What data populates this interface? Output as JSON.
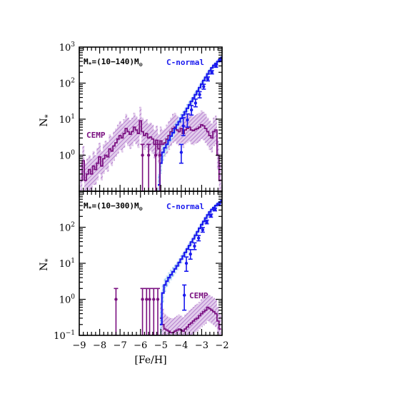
{
  "colors": {
    "c_normal": "#1a1aee",
    "c_normal_band": "#9ec8ee",
    "cemp": "#7a1080",
    "cemp_band": "#c8a0dc",
    "axes": "#000000"
  },
  "x_axis": {
    "label": "[Fe/H]",
    "xlim": [
      -9,
      -2
    ],
    "ticks": [
      "−9",
      "−8",
      "−7",
      "−6",
      "−5",
      "−4",
      "−3",
      "−2"
    ],
    "tick_values": [
      -9,
      -8,
      -7,
      -6,
      -5,
      -4,
      -3,
      -2
    ]
  },
  "chart_data": [
    {
      "type": "line",
      "panel": "top",
      "mass_label": {
        "prefix": "M",
        "sub": "*",
        "mid": "=(10−140)M",
        "sun": "⊙"
      },
      "ylabel": {
        "main": "N",
        "sub": "*"
      },
      "ylim": [
        0.1,
        1000
      ],
      "yscale": "log",
      "y_ticks": [
        {
          "value": 1,
          "base": "10",
          "exp": "0"
        },
        {
          "value": 10,
          "base": "10",
          "exp": "1"
        },
        {
          "value": 100,
          "base": "10",
          "exp": "2"
        },
        {
          "value": 1000,
          "base": "10",
          "exp": "3"
        }
      ],
      "series": [
        {
          "name": "C-normal",
          "label_position": "top-right",
          "x": [
            -5.1,
            -5.0,
            -4.9,
            -4.8,
            -4.7,
            -4.6,
            -4.5,
            -4.4,
            -4.3,
            -4.2,
            -4.1,
            -4.0,
            -3.9,
            -3.8,
            -3.7,
            -3.6,
            -3.5,
            -3.4,
            -3.3,
            -3.2,
            -3.1,
            -3.0,
            -2.9,
            -2.8,
            -2.7,
            -2.6,
            -2.5,
            -2.4,
            -2.3,
            -2.2,
            -2.1,
            -2.0
          ],
          "y": [
            0.15,
            0.6,
            1.2,
            1.6,
            2.0,
            2.6,
            3.4,
            4.2,
            5.5,
            7.0,
            8.5,
            10.5,
            13,
            16,
            20,
            25,
            31,
            39,
            48,
            60,
            75,
            94,
            118,
            145,
            180,
            220,
            265,
            310,
            350,
            400,
            460,
            520
          ],
          "band_low": [
            0.1,
            0.3,
            0.7,
            1.0,
            1.3,
            1.8,
            2.4,
            3.0,
            4.0,
            5.2,
            6.5,
            8.0,
            10,
            12.5,
            16,
            20,
            25,
            32,
            40,
            50,
            63,
            80,
            100,
            125,
            155,
            190,
            230,
            270,
            305,
            350,
            400,
            450
          ],
          "band_high": [
            0.3,
            1.0,
            2.0,
            2.6,
            3.2,
            4.0,
            5.0,
            6.0,
            7.5,
            9.5,
            11.5,
            14,
            17,
            21,
            26,
            32,
            39,
            48,
            58,
            72,
            90,
            112,
            140,
            170,
            210,
            255,
            305,
            355,
            400,
            455,
            520,
            590
          ],
          "error_points": [
            {
              "x": -3.9,
              "y": 6.5,
              "low": 3.5,
              "high": 11
            },
            {
              "x": -3.7,
              "y": 9.5,
              "low": 6,
              "high": 14
            },
            {
              "x": -4.0,
              "y": 1.2,
              "low": 0.6,
              "high": 2.0
            },
            {
              "x": -3.5,
              "y": 18,
              "low": 13,
              "high": 24
            },
            {
              "x": -3.3,
              "y": 28,
              "low": 22,
              "high": 36
            },
            {
              "x": -3.1,
              "y": 48,
              "low": 39,
              "high": 58
            },
            {
              "x": -2.9,
              "y": 80,
              "low": 68,
              "high": 93
            },
            {
              "x": -2.7,
              "y": 130,
              "low": 115,
              "high": 148
            },
            {
              "x": -2.5,
              "y": 200,
              "low": 180,
              "high": 222
            },
            {
              "x": -2.3,
              "y": 300,
              "low": 275,
              "high": 325
            },
            {
              "x": -2.1,
              "y": 420,
              "low": 395,
              "high": 445
            }
          ]
        },
        {
          "name": "CEMP",
          "label_position": "left",
          "x": [
            -8.9,
            -8.8,
            -8.7,
            -8.6,
            -8.5,
            -8.4,
            -8.3,
            -8.2,
            -8.1,
            -8.0,
            -7.9,
            -7.8,
            -7.7,
            -7.6,
            -7.5,
            -7.4,
            -7.3,
            -7.2,
            -7.1,
            -7.0,
            -6.9,
            -6.8,
            -6.7,
            -6.6,
            -6.5,
            -6.4,
            -6.3,
            -6.2,
            -6.1,
            -6.0,
            -5.9,
            -5.8,
            -5.7,
            -5.6,
            -5.5,
            -5.4,
            -5.3,
            -5.2,
            -5.1,
            -5.0,
            -4.9,
            -4.8,
            -4.7,
            -4.6,
            -4.5,
            -4.4,
            -4.3,
            -4.2,
            -4.1,
            -4.0,
            -3.9,
            -3.8,
            -3.7,
            -3.6,
            -3.5,
            -3.4,
            -3.3,
            -3.2,
            -3.1,
            -3.0,
            -2.9,
            -2.8,
            -2.7,
            -2.6,
            -2.5,
            -2.4,
            -2.3,
            -2.2,
            -2.1
          ],
          "y": [
            0.2,
            0.7,
            0.2,
            0.3,
            0.4,
            0.3,
            0.5,
            0.4,
            0.6,
            0.9,
            0.5,
            0.8,
            1.0,
            0.9,
            1.5,
            1.3,
            1.8,
            2.2,
            2.8,
            3.5,
            3.0,
            4.0,
            5.5,
            4.5,
            3.8,
            4.5,
            6.0,
            5.0,
            4.0,
            9.0,
            4.5,
            3.5,
            4.0,
            3.0,
            3.2,
            2.8,
            2.0,
            2.6,
            1.5,
            2.5,
            2.0,
            2.2,
            2.8,
            3.5,
            4.5,
            5.5,
            6.0,
            5.0,
            4.5,
            5.5,
            4.0,
            5.0,
            5.5,
            6.0,
            5.0,
            4.8,
            5.2,
            5.5,
            6.0,
            7.0,
            6.5,
            5.5,
            4.5,
            3.5,
            3.0,
            4.5,
            5.0,
            1.0,
            0.2
          ],
          "band_low": [
            0.1,
            0.2,
            0.1,
            0.1,
            0.1,
            0.1,
            0.15,
            0.15,
            0.2,
            0.3,
            0.2,
            0.3,
            0.4,
            0.35,
            0.6,
            0.5,
            0.7,
            0.9,
            1.1,
            1.4,
            1.2,
            1.6,
            2.2,
            1.8,
            1.5,
            1.8,
            2.4,
            2.0,
            1.6,
            3.6,
            1.8,
            1.4,
            1.6,
            1.2,
            1.3,
            1.1,
            0.8,
            1.0,
            0.6,
            1.0,
            0.8,
            0.9,
            1.1,
            1.4,
            1.8,
            2.2,
            2.4,
            2.0,
            1.8,
            2.2,
            1.6,
            2.0,
            2.2,
            2.4,
            2.0,
            1.9,
            2.1,
            2.2,
            2.4,
            2.8,
            2.6,
            2.2,
            1.8,
            1.4,
            1.2,
            1.8,
            2.0,
            0.4,
            0.1
          ],
          "band_high": [
            0.6,
            1.8,
            0.6,
            0.8,
            1.0,
            0.8,
            1.3,
            1.0,
            1.6,
            2.2,
            1.3,
            2.0,
            2.5,
            2.3,
            3.8,
            3.3,
            4.5,
            5.5,
            7.0,
            8.8,
            7.5,
            10,
            14,
            11,
            9.5,
            11,
            15,
            12,
            10,
            22,
            11,
            9,
            10,
            7.5,
            8,
            7,
            5,
            6.5,
            3.8,
            6.2,
            5,
            5.5,
            7,
            8.8,
            11,
            14,
            15,
            12.5,
            11,
            14,
            10,
            12.5,
            14,
            15,
            12.5,
            12,
            13,
            14,
            15,
            17.5,
            16,
            14,
            11,
            9,
            7.5,
            11,
            12.5,
            2.5,
            0.6
          ],
          "error_points": [
            {
              "x": -5.9,
              "y": 1.0,
              "low": 0.1,
              "high": 2.0
            },
            {
              "x": -5.6,
              "y": 1.0,
              "low": 0.1,
              "high": 2.0
            },
            {
              "x": -5.25,
              "y": 1.0,
              "low": 0.1,
              "high": 2.0
            },
            {
              "x": -5.05,
              "y": 1.0,
              "low": 0.1,
              "high": 2.0
            }
          ]
        }
      ]
    },
    {
      "type": "line",
      "panel": "bottom",
      "mass_label": {
        "prefix": "M",
        "sub": "*",
        "mid": "=(10−300)M",
        "sun": "⊙"
      },
      "ylabel": {
        "main": "N",
        "sub": "*"
      },
      "ylim": [
        0.1,
        1000
      ],
      "yscale": "log",
      "y_ticks": [
        {
          "value": 0.1,
          "base": "10",
          "exp": "−1"
        },
        {
          "value": 1,
          "base": "10",
          "exp": "0"
        },
        {
          "value": 10,
          "base": "10",
          "exp": "1"
        },
        {
          "value": 100,
          "base": "10",
          "exp": "2"
        }
      ],
      "series": [
        {
          "name": "C-normal",
          "label_position": "top-right",
          "x": [
            -5.0,
            -4.9,
            -4.8,
            -4.7,
            -4.6,
            -4.5,
            -4.4,
            -4.3,
            -4.2,
            -4.1,
            -4.0,
            -3.9,
            -3.8,
            -3.7,
            -3.6,
            -3.5,
            -3.4,
            -3.3,
            -3.2,
            -3.1,
            -3.0,
            -2.9,
            -2.8,
            -2.7,
            -2.6,
            -2.5,
            -2.4,
            -2.3,
            -2.2,
            -2.1,
            -2.0
          ],
          "y": [
            0.2,
            1.5,
            2.5,
            3.2,
            4.0,
            4.8,
            5.8,
            7.0,
            8.5,
            10.5,
            13,
            16,
            20,
            25,
            31,
            39,
            48,
            60,
            75,
            94,
            118,
            145,
            180,
            220,
            265,
            310,
            350,
            400,
            450,
            500,
            550
          ],
          "band_low": [
            0.1,
            0.8,
            1.6,
            2.2,
            2.8,
            3.4,
            4.2,
            5.2,
            6.4,
            8.0,
            10,
            12.5,
            16,
            20,
            25,
            32,
            40,
            50,
            63,
            80,
            100,
            125,
            155,
            190,
            230,
            270,
            305,
            350,
            395,
            440,
            490
          ],
          "band_high": [
            0.5,
            2.6,
            3.8,
            4.6,
            5.6,
            6.6,
            7.8,
            9.2,
            11,
            13.5,
            16.5,
            20,
            24.5,
            30,
            37,
            46,
            56,
            70,
            87,
            108,
            135,
            165,
            205,
            250,
            300,
            350,
            395,
            450,
            505,
            560,
            615
          ],
          "error_points": [
            {
              "x": -3.85,
              "y": 1.3,
              "low": 0.5,
              "high": 2.5
            },
            {
              "x": -3.75,
              "y": 10,
              "low": 6,
              "high": 15
            },
            {
              "x": -3.55,
              "y": 18,
              "low": 13,
              "high": 24
            },
            {
              "x": -3.35,
              "y": 30,
              "low": 24,
              "high": 37
            },
            {
              "x": -3.15,
              "y": 50,
              "low": 42,
              "high": 59
            },
            {
              "x": -2.95,
              "y": 85,
              "low": 73,
              "high": 98
            },
            {
              "x": -2.75,
              "y": 140,
              "low": 125,
              "high": 157
            },
            {
              "x": -2.55,
              "y": 210,
              "low": 190,
              "high": 232
            },
            {
              "x": -2.35,
              "y": 310,
              "low": 285,
              "high": 336
            },
            {
              "x": -2.15,
              "y": 430,
              "low": 405,
              "high": 456
            }
          ]
        },
        {
          "name": "CEMP",
          "label_position": "right",
          "x": [
            -5.0,
            -4.9,
            -4.8,
            -4.7,
            -4.6,
            -4.5,
            -4.4,
            -4.3,
            -4.2,
            -4.1,
            -4.0,
            -3.9,
            -3.8,
            -3.7,
            -3.6,
            -3.5,
            -3.4,
            -3.3,
            -3.2,
            -3.1,
            -3.0,
            -2.9,
            -2.8,
            -2.7,
            -2.6,
            -2.5,
            -2.4,
            -2.3,
            -2.2,
            -2.1
          ],
          "y": [
            0.3,
            0.2,
            0.15,
            0.14,
            0.13,
            0.12,
            0.12,
            0.13,
            0.14,
            0.15,
            0.14,
            0.13,
            0.15,
            0.17,
            0.2,
            0.22,
            0.25,
            0.28,
            0.3,
            0.35,
            0.4,
            0.45,
            0.5,
            0.6,
            0.55,
            0.5,
            0.45,
            0.4,
            0.25,
            0.15
          ],
          "band_low": [
            0.1,
            0.1,
            0.1,
            0.1,
            0.1,
            0.1,
            0.1,
            0.1,
            0.1,
            0.1,
            0.1,
            0.1,
            0.1,
            0.1,
            0.1,
            0.1,
            0.1,
            0.12,
            0.13,
            0.15,
            0.17,
            0.19,
            0.21,
            0.25,
            0.23,
            0.21,
            0.19,
            0.17,
            0.11,
            0.1
          ],
          "band_high": [
            0.8,
            0.55,
            0.4,
            0.35,
            0.32,
            0.3,
            0.3,
            0.32,
            0.35,
            0.38,
            0.35,
            0.32,
            0.38,
            0.42,
            0.5,
            0.55,
            0.62,
            0.7,
            0.75,
            0.85,
            1.0,
            1.1,
            1.2,
            1.4,
            1.3,
            1.2,
            1.1,
            1.0,
            0.62,
            0.38
          ],
          "error_points": [
            {
              "x": -7.2,
              "y": 1.0,
              "low": 0.1,
              "high": 2.0
            },
            {
              "x": -5.9,
              "y": 1.0,
              "low": 0.1,
              "high": 2.0
            },
            {
              "x": -5.7,
              "y": 1.0,
              "low": 0.1,
              "high": 2.0
            },
            {
              "x": -5.55,
              "y": 1.0,
              "low": 0.1,
              "high": 2.0
            },
            {
              "x": -5.35,
              "y": 1.0,
              "low": 0.1,
              "high": 2.0
            },
            {
              "x": -5.15,
              "y": 1.0,
              "low": 0.1,
              "high": 2.0
            }
          ]
        }
      ]
    }
  ]
}
